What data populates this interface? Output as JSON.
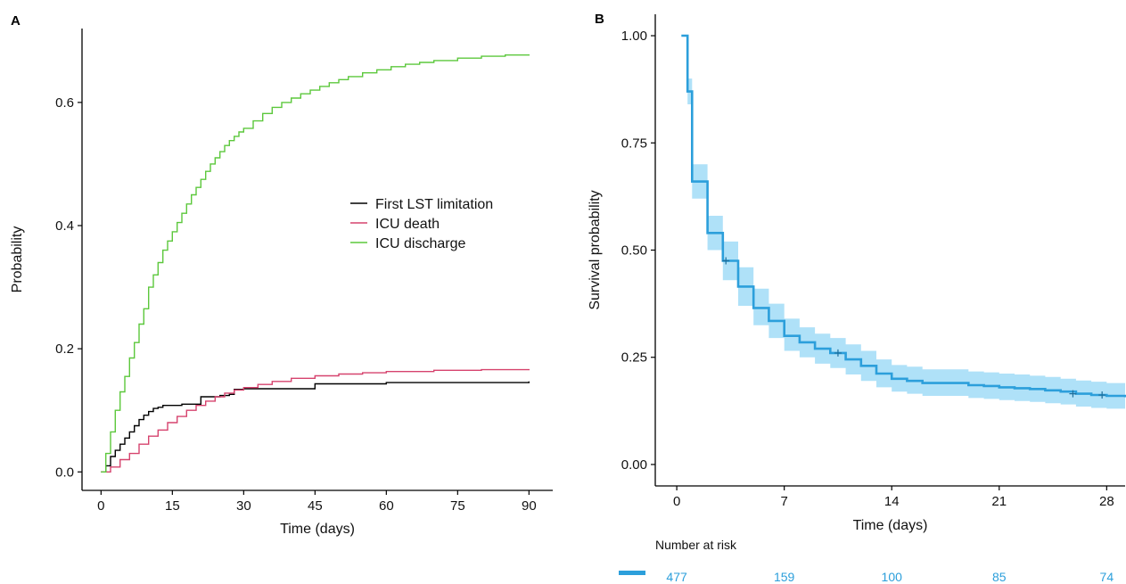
{
  "chart_data": [
    {
      "panel": "A",
      "type": "line",
      "step": true,
      "xlabel": "Time (days)",
      "ylabel": "Probability",
      "xlim": [
        -4,
        95
      ],
      "ylim": [
        -0.03,
        0.72
      ],
      "xticks": [
        0,
        15,
        30,
        45,
        60,
        75,
        90
      ],
      "yticks": [
        0.0,
        0.2,
        0.4,
        0.6
      ],
      "ytick_labels": [
        "0.0",
        "0.2",
        "0.4",
        "0.6"
      ],
      "legend_position": "center-right",
      "series": [
        {
          "name": "First LST limitation",
          "color": "#000000",
          "x": [
            0,
            1,
            2,
            3,
            4,
            5,
            6,
            7,
            8,
            9,
            10,
            11,
            12,
            13,
            15,
            17,
            20,
            21,
            25,
            27,
            28,
            30,
            35,
            45,
            60,
            90
          ],
          "y": [
            0,
            0.01,
            0.025,
            0.035,
            0.045,
            0.055,
            0.065,
            0.075,
            0.085,
            0.092,
            0.098,
            0.103,
            0.105,
            0.108,
            0.108,
            0.11,
            0.11,
            0.122,
            0.124,
            0.126,
            0.134,
            0.135,
            0.135,
            0.143,
            0.145,
            0.147
          ]
        },
        {
          "name": "ICU death",
          "color": "#d6436e",
          "x": [
            0,
            2,
            4,
            6,
            8,
            10,
            12,
            14,
            16,
            18,
            20,
            22,
            24,
            26,
            28,
            30,
            33,
            36,
            40,
            45,
            50,
            55,
            60,
            70,
            80,
            90
          ],
          "y": [
            0,
            0.008,
            0.02,
            0.03,
            0.045,
            0.058,
            0.068,
            0.08,
            0.09,
            0.1,
            0.108,
            0.115,
            0.122,
            0.128,
            0.133,
            0.137,
            0.142,
            0.147,
            0.152,
            0.156,
            0.159,
            0.161,
            0.163,
            0.165,
            0.166,
            0.167
          ]
        },
        {
          "name": "ICU discharge",
          "color": "#5cc83c",
          "x": [
            0,
            1,
            2,
            3,
            4,
            5,
            6,
            7,
            8,
            9,
            10,
            11,
            12,
            13,
            14,
            15,
            16,
            17,
            18,
            19,
            20,
            21,
            22,
            23,
            24,
            25,
            26,
            27,
            28,
            29,
            30,
            32,
            34,
            36,
            38,
            40,
            42,
            44,
            46,
            48,
            50,
            52,
            55,
            58,
            61,
            64,
            67,
            70,
            75,
            80,
            85,
            90
          ],
          "y": [
            0,
            0.03,
            0.065,
            0.1,
            0.13,
            0.155,
            0.185,
            0.21,
            0.24,
            0.265,
            0.3,
            0.32,
            0.34,
            0.36,
            0.375,
            0.39,
            0.405,
            0.42,
            0.435,
            0.45,
            0.462,
            0.475,
            0.488,
            0.5,
            0.51,
            0.52,
            0.53,
            0.538,
            0.545,
            0.552,
            0.558,
            0.57,
            0.582,
            0.592,
            0.6,
            0.607,
            0.614,
            0.62,
            0.626,
            0.632,
            0.637,
            0.642,
            0.648,
            0.653,
            0.658,
            0.662,
            0.665,
            0.668,
            0.672,
            0.675,
            0.677,
            0.678
          ]
        }
      ]
    },
    {
      "panel": "B",
      "type": "line",
      "step": true,
      "xlabel": "Time (days)",
      "ylabel": "Survival probability",
      "xlim": [
        -1.4,
        29.2
      ],
      "ylim": [
        -0.05,
        1.05
      ],
      "xticks": [
        0,
        7,
        14,
        21,
        28
      ],
      "yticks": [
        0.0,
        0.25,
        0.5,
        0.75,
        1.0
      ],
      "ytick_labels": [
        "0.00",
        "0.25",
        "0.50",
        "0.75",
        "1.00"
      ],
      "series": [
        {
          "name": "",
          "color": "#2c9fdb",
          "ci_color": "#a6def7",
          "x": [
            0.3,
            0.7,
            1.0,
            2.0,
            3.0,
            4.0,
            5.0,
            6.0,
            7.0,
            8.0,
            9.0,
            10.0,
            11.0,
            12.0,
            13.0,
            14.0,
            15.0,
            16.0,
            18.0,
            19.0,
            20.0,
            21.0,
            22.0,
            23.0,
            24.0,
            25.0,
            26.0,
            27.0,
            28.0,
            29.2
          ],
          "y": [
            1.0,
            0.87,
            0.66,
            0.54,
            0.475,
            0.415,
            0.365,
            0.335,
            0.3,
            0.285,
            0.27,
            0.26,
            0.245,
            0.23,
            0.212,
            0.2,
            0.195,
            0.19,
            0.19,
            0.185,
            0.183,
            0.18,
            0.178,
            0.176,
            0.173,
            0.17,
            0.165,
            0.162,
            0.16,
            0.157
          ],
          "lower": [
            1.0,
            0.84,
            0.62,
            0.5,
            0.43,
            0.37,
            0.325,
            0.295,
            0.265,
            0.25,
            0.235,
            0.225,
            0.21,
            0.195,
            0.18,
            0.17,
            0.165,
            0.16,
            0.16,
            0.155,
            0.153,
            0.15,
            0.148,
            0.146,
            0.143,
            0.14,
            0.135,
            0.132,
            0.13,
            0.127
          ],
          "upper": [
            1.0,
            0.9,
            0.7,
            0.58,
            0.52,
            0.46,
            0.41,
            0.375,
            0.34,
            0.32,
            0.305,
            0.295,
            0.28,
            0.265,
            0.245,
            0.232,
            0.228,
            0.222,
            0.222,
            0.217,
            0.215,
            0.212,
            0.21,
            0.207,
            0.204,
            0.2,
            0.196,
            0.193,
            0.19,
            0.187
          ]
        }
      ],
      "censor_marks": [
        {
          "x": 3.2,
          "y": 0.475
        },
        {
          "x": 10.5,
          "y": 0.26
        },
        {
          "x": 25.8,
          "y": 0.165
        },
        {
          "x": 27.7,
          "y": 0.162
        }
      ],
      "risk_table": {
        "title": "Number at risk",
        "times": [
          0,
          7,
          14,
          21,
          28
        ],
        "counts": [
          "477",
          "159",
          "100",
          "85",
          "74"
        ],
        "color": "#2c9fdb"
      }
    }
  ]
}
